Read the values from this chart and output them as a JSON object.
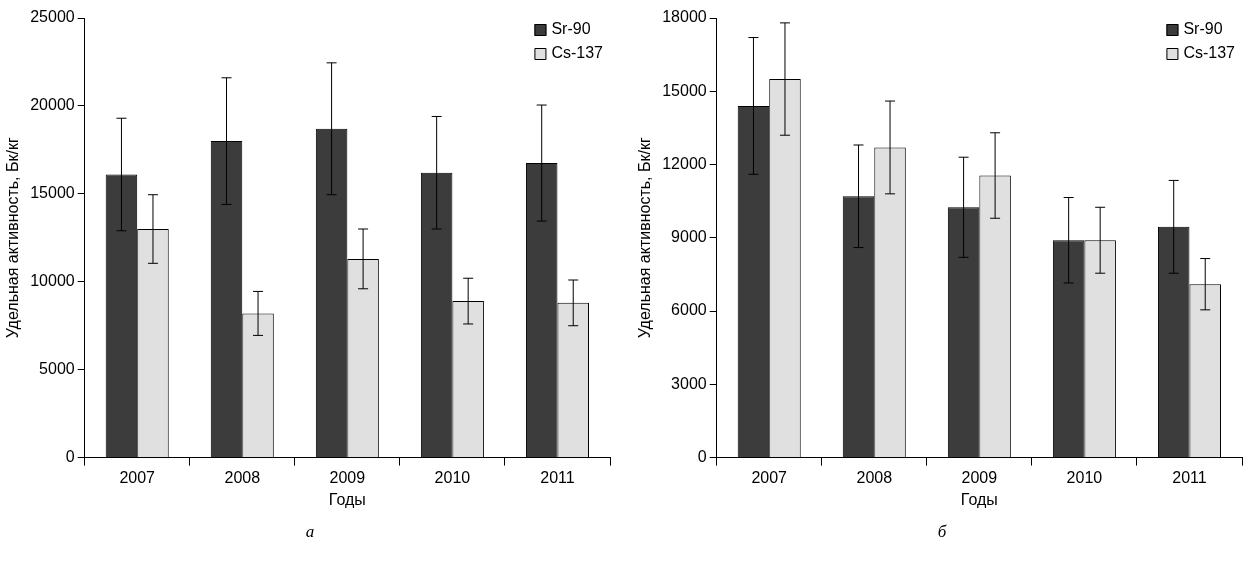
{
  "chart_data": [
    {
      "type": "bar",
      "categories": [
        "2007",
        "2008",
        "2009",
        "2010",
        "2011"
      ],
      "xlabel": "Годы",
      "ylabel": "Удельная активность, Бк/кг",
      "ylim": [
        0,
        25000
      ],
      "yticks": [
        0,
        5000,
        10000,
        15000,
        20000,
        25000
      ],
      "grid": false,
      "legend": "top right",
      "annotations": [
        "а"
      ],
      "series": [
        {
          "name": "Sr-90",
          "color": "#3c3c3c",
          "values": [
            16100,
            18000,
            18700,
            16200,
            16750
          ],
          "errors": [
            3200,
            3600,
            3750,
            3200,
            3300
          ]
        },
        {
          "name": "Cs-137",
          "color": "#e0e0e0",
          "values": [
            13000,
            8200,
            11300,
            8900,
            8800
          ],
          "errors": [
            1950,
            1250,
            1700,
            1300,
            1300
          ]
        }
      ]
    },
    {
      "type": "bar",
      "categories": [
        "2007",
        "2008",
        "2009",
        "2010",
        "2011"
      ],
      "xlabel": "Годы",
      "ylabel": "Удельная активность, Бк/кг",
      "ylim": [
        0,
        18000
      ],
      "yticks": [
        0,
        3000,
        6000,
        9000,
        12000,
        15000,
        18000
      ],
      "grid": false,
      "legend": "top right",
      "annotations": [
        "б"
      ],
      "series": [
        {
          "name": "Sr-90",
          "color": "#3c3c3c",
          "values": [
            14400,
            10700,
            10250,
            8900,
            9450
          ],
          "errors": [
            2800,
            2100,
            2050,
            1750,
            1900
          ]
        },
        {
          "name": "Cs-137",
          "color": "#e0e0e0",
          "values": [
            15500,
            12700,
            11550,
            8900,
            7100
          ],
          "errors": [
            2300,
            1900,
            1750,
            1350,
            1050
          ]
        }
      ]
    }
  ]
}
